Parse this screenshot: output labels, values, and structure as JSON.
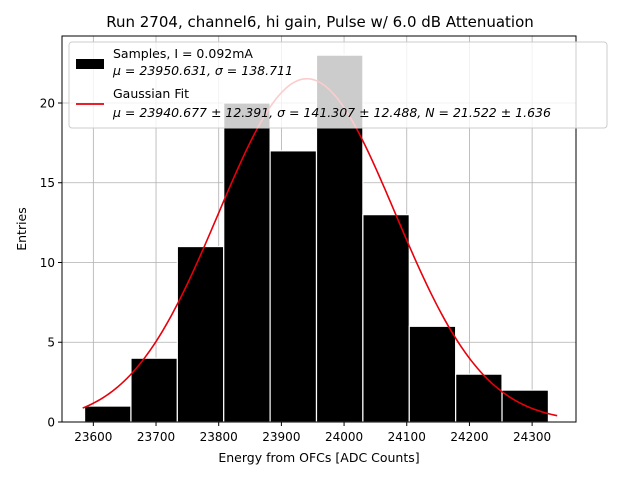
{
  "chart_data": {
    "type": "bar",
    "title": "Run 2704, channel6, hi gain, Pulse w/ 6.0 dB Attenuation",
    "xlabel": "Energy from OFCs [ADC Counts]",
    "ylabel": "Entries",
    "xlim": [
      23550,
      24370
    ],
    "ylim": [
      0,
      24.2
    ],
    "x_ticks": [
      "23600",
      "23700",
      "23800",
      "23900",
      "24000",
      "24100",
      "24200",
      "24300"
    ],
    "y_ticks": [
      "0",
      "5",
      "10",
      "15",
      "20"
    ],
    "grid": true,
    "legend_position": "top-right",
    "bins": {
      "edges": [
        23586,
        23660,
        23734,
        23808,
        23882,
        23956,
        24030,
        24104,
        24178,
        24252,
        24326
      ],
      "counts": [
        1,
        4,
        11,
        20,
        17,
        23,
        13,
        6,
        3,
        2
      ]
    },
    "fit_curve": {
      "name": "Gaussian Fit",
      "mu": 23940.677,
      "sigma": 141.307,
      "N": 21.522,
      "x_range": [
        23583,
        24340
      ]
    },
    "legend": [
      {
        "kind": "bar",
        "line1": "Samples, I = 0.092mA",
        "line2": "μ = 23950.631, σ = 138.711",
        "color": "#000000"
      },
      {
        "kind": "line",
        "line1": "Gaussian Fit",
        "line2": "μ = 23940.677 ± 12.391, σ = 141.307 ± 12.488, N = 21.522 ± 1.636",
        "color": "#ff0000"
      }
    ],
    "colors": {
      "bar": "#000000",
      "bar_edge": "#ffffff",
      "fit": "#e8000b",
      "grid": "#b0b0b0"
    }
  }
}
